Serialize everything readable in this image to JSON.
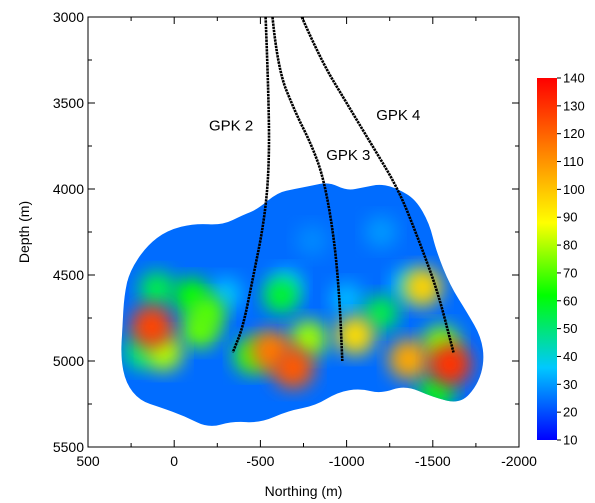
{
  "chart_data": {
    "type": "heatmap",
    "xlabel": "Northing (m)",
    "ylabel": "Depth (m)",
    "xlim": [
      500,
      -2000
    ],
    "ylim": [
      3000,
      5500
    ],
    "x_ticks": [
      500,
      0,
      -500,
      -1000,
      -1500,
      -2000
    ],
    "x_tick_labels": [
      "500",
      "0",
      "-500",
      "-1000",
      "-1500",
      "-2000"
    ],
    "y_ticks": [
      3000,
      3500,
      4000,
      4500,
      5000,
      5500
    ],
    "y_tick_labels": [
      "3000",
      "3500",
      "4000",
      "4500",
      "5000",
      "5500"
    ],
    "grid": false,
    "legend": "colorbar right",
    "colorbar": {
      "min": 10,
      "max": 140,
      "ticks": [
        10,
        20,
        30,
        40,
        50,
        60,
        70,
        80,
        90,
        100,
        110,
        120,
        130,
        140
      ],
      "tick_labels": [
        "10",
        "20",
        "30",
        "40",
        "50",
        "60",
        "70",
        "80",
        "90",
        "100",
        "110",
        "120",
        "130",
        "140"
      ],
      "colors": [
        "#0000ff",
        "#00c8ff",
        "#00ff00",
        "#ffff00",
        "#ff8000",
        "#ff0000"
      ]
    },
    "outline": [
      [
        -480,
        4120
      ],
      [
        -600,
        4020
      ],
      [
        -700,
        4000
      ],
      [
        -800,
        3980
      ],
      [
        -900,
        3960
      ],
      [
        -1000,
        4010
      ],
      [
        -1100,
        3990
      ],
      [
        -1200,
        3970
      ],
      [
        -1300,
        4000
      ],
      [
        -1400,
        4060
      ],
      [
        -1480,
        4200
      ],
      [
        -1520,
        4360
      ],
      [
        -1600,
        4560
      ],
      [
        -1700,
        4720
      ],
      [
        -1780,
        4860
      ],
      [
        -1800,
        5000
      ],
      [
        -1760,
        5140
      ],
      [
        -1660,
        5250
      ],
      [
        -1500,
        5210
      ],
      [
        -1340,
        5140
      ],
      [
        -1200,
        5190
      ],
      [
        -1080,
        5160
      ],
      [
        -950,
        5180
      ],
      [
        -820,
        5260
      ],
      [
        -660,
        5290
      ],
      [
        -500,
        5360
      ],
      [
        -340,
        5350
      ],
      [
        -200,
        5390
      ],
      [
        -60,
        5320
      ],
      [
        80,
        5270
      ],
      [
        200,
        5230
      ],
      [
        280,
        5130
      ],
      [
        310,
        4980
      ],
      [
        300,
        4800
      ],
      [
        290,
        4620
      ],
      [
        260,
        4480
      ],
      [
        160,
        4330
      ],
      [
        40,
        4240
      ],
      [
        -120,
        4200
      ],
      [
        -280,
        4210
      ],
      [
        -400,
        4150
      ]
    ],
    "blobs": [
      {
        "x": -1000,
        "y": 4640,
        "v": 34
      },
      {
        "x": -650,
        "y": 4560,
        "v": 36
      },
      {
        "x": -300,
        "y": 4610,
        "v": 35
      },
      {
        "x": -1350,
        "y": 4560,
        "v": 36
      },
      {
        "x": -800,
        "y": 4300,
        "v": 28
      },
      {
        "x": -1200,
        "y": 4250,
        "v": 30
      },
      {
        "x": 100,
        "y": 4580,
        "v": 55
      },
      {
        "x": 200,
        "y": 4950,
        "v": 50
      },
      {
        "x": -100,
        "y": 4620,
        "v": 62
      },
      {
        "x": -190,
        "y": 4720,
        "v": 70
      },
      {
        "x": -150,
        "y": 4820,
        "v": 72
      },
      {
        "x": 130,
        "y": 4800,
        "v": 126
      },
      {
        "x": 60,
        "y": 4950,
        "v": 80
      },
      {
        "x": -450,
        "y": 4970,
        "v": 68
      },
      {
        "x": -560,
        "y": 4940,
        "v": 115
      },
      {
        "x": -690,
        "y": 5040,
        "v": 122
      },
      {
        "x": -780,
        "y": 4870,
        "v": 78
      },
      {
        "x": -620,
        "y": 4620,
        "v": 58
      },
      {
        "x": -1050,
        "y": 4850,
        "v": 95
      },
      {
        "x": -1200,
        "y": 4720,
        "v": 55
      },
      {
        "x": -1440,
        "y": 4570,
        "v": 97
      },
      {
        "x": -1360,
        "y": 4990,
        "v": 106
      },
      {
        "x": -1600,
        "y": 5020,
        "v": 130
      },
      {
        "x": -1550,
        "y": 4900,
        "v": 75
      },
      {
        "x": -1520,
        "y": 5180,
        "v": 60
      }
    ],
    "wells": [
      {
        "name": "GPK 2",
        "points": [
          [
            -530,
            3000
          ],
          [
            -550,
            3500
          ],
          [
            -550,
            3900
          ],
          [
            -520,
            4200
          ],
          [
            -460,
            4500
          ],
          [
            -400,
            4800
          ],
          [
            -340,
            4950
          ]
        ],
        "label_x": -330,
        "label_y": 3660
      },
      {
        "name": "GPK 3",
        "points": [
          [
            -570,
            3000
          ],
          [
            -600,
            3300
          ],
          [
            -700,
            3550
          ],
          [
            -800,
            3750
          ],
          [
            -870,
            3950
          ],
          [
            -930,
            4300
          ],
          [
            -960,
            4650
          ],
          [
            -975,
            5000
          ]
        ],
        "label_x": -1010,
        "label_y": 3830
      },
      {
        "name": "GPK 4",
        "points": [
          [
            -740,
            3000
          ],
          [
            -850,
            3250
          ],
          [
            -1000,
            3500
          ],
          [
            -1150,
            3750
          ],
          [
            -1300,
            4000
          ],
          [
            -1420,
            4300
          ],
          [
            -1530,
            4600
          ],
          [
            -1620,
            4950
          ]
        ],
        "label_x": -1300,
        "label_y": 3600
      }
    ]
  }
}
